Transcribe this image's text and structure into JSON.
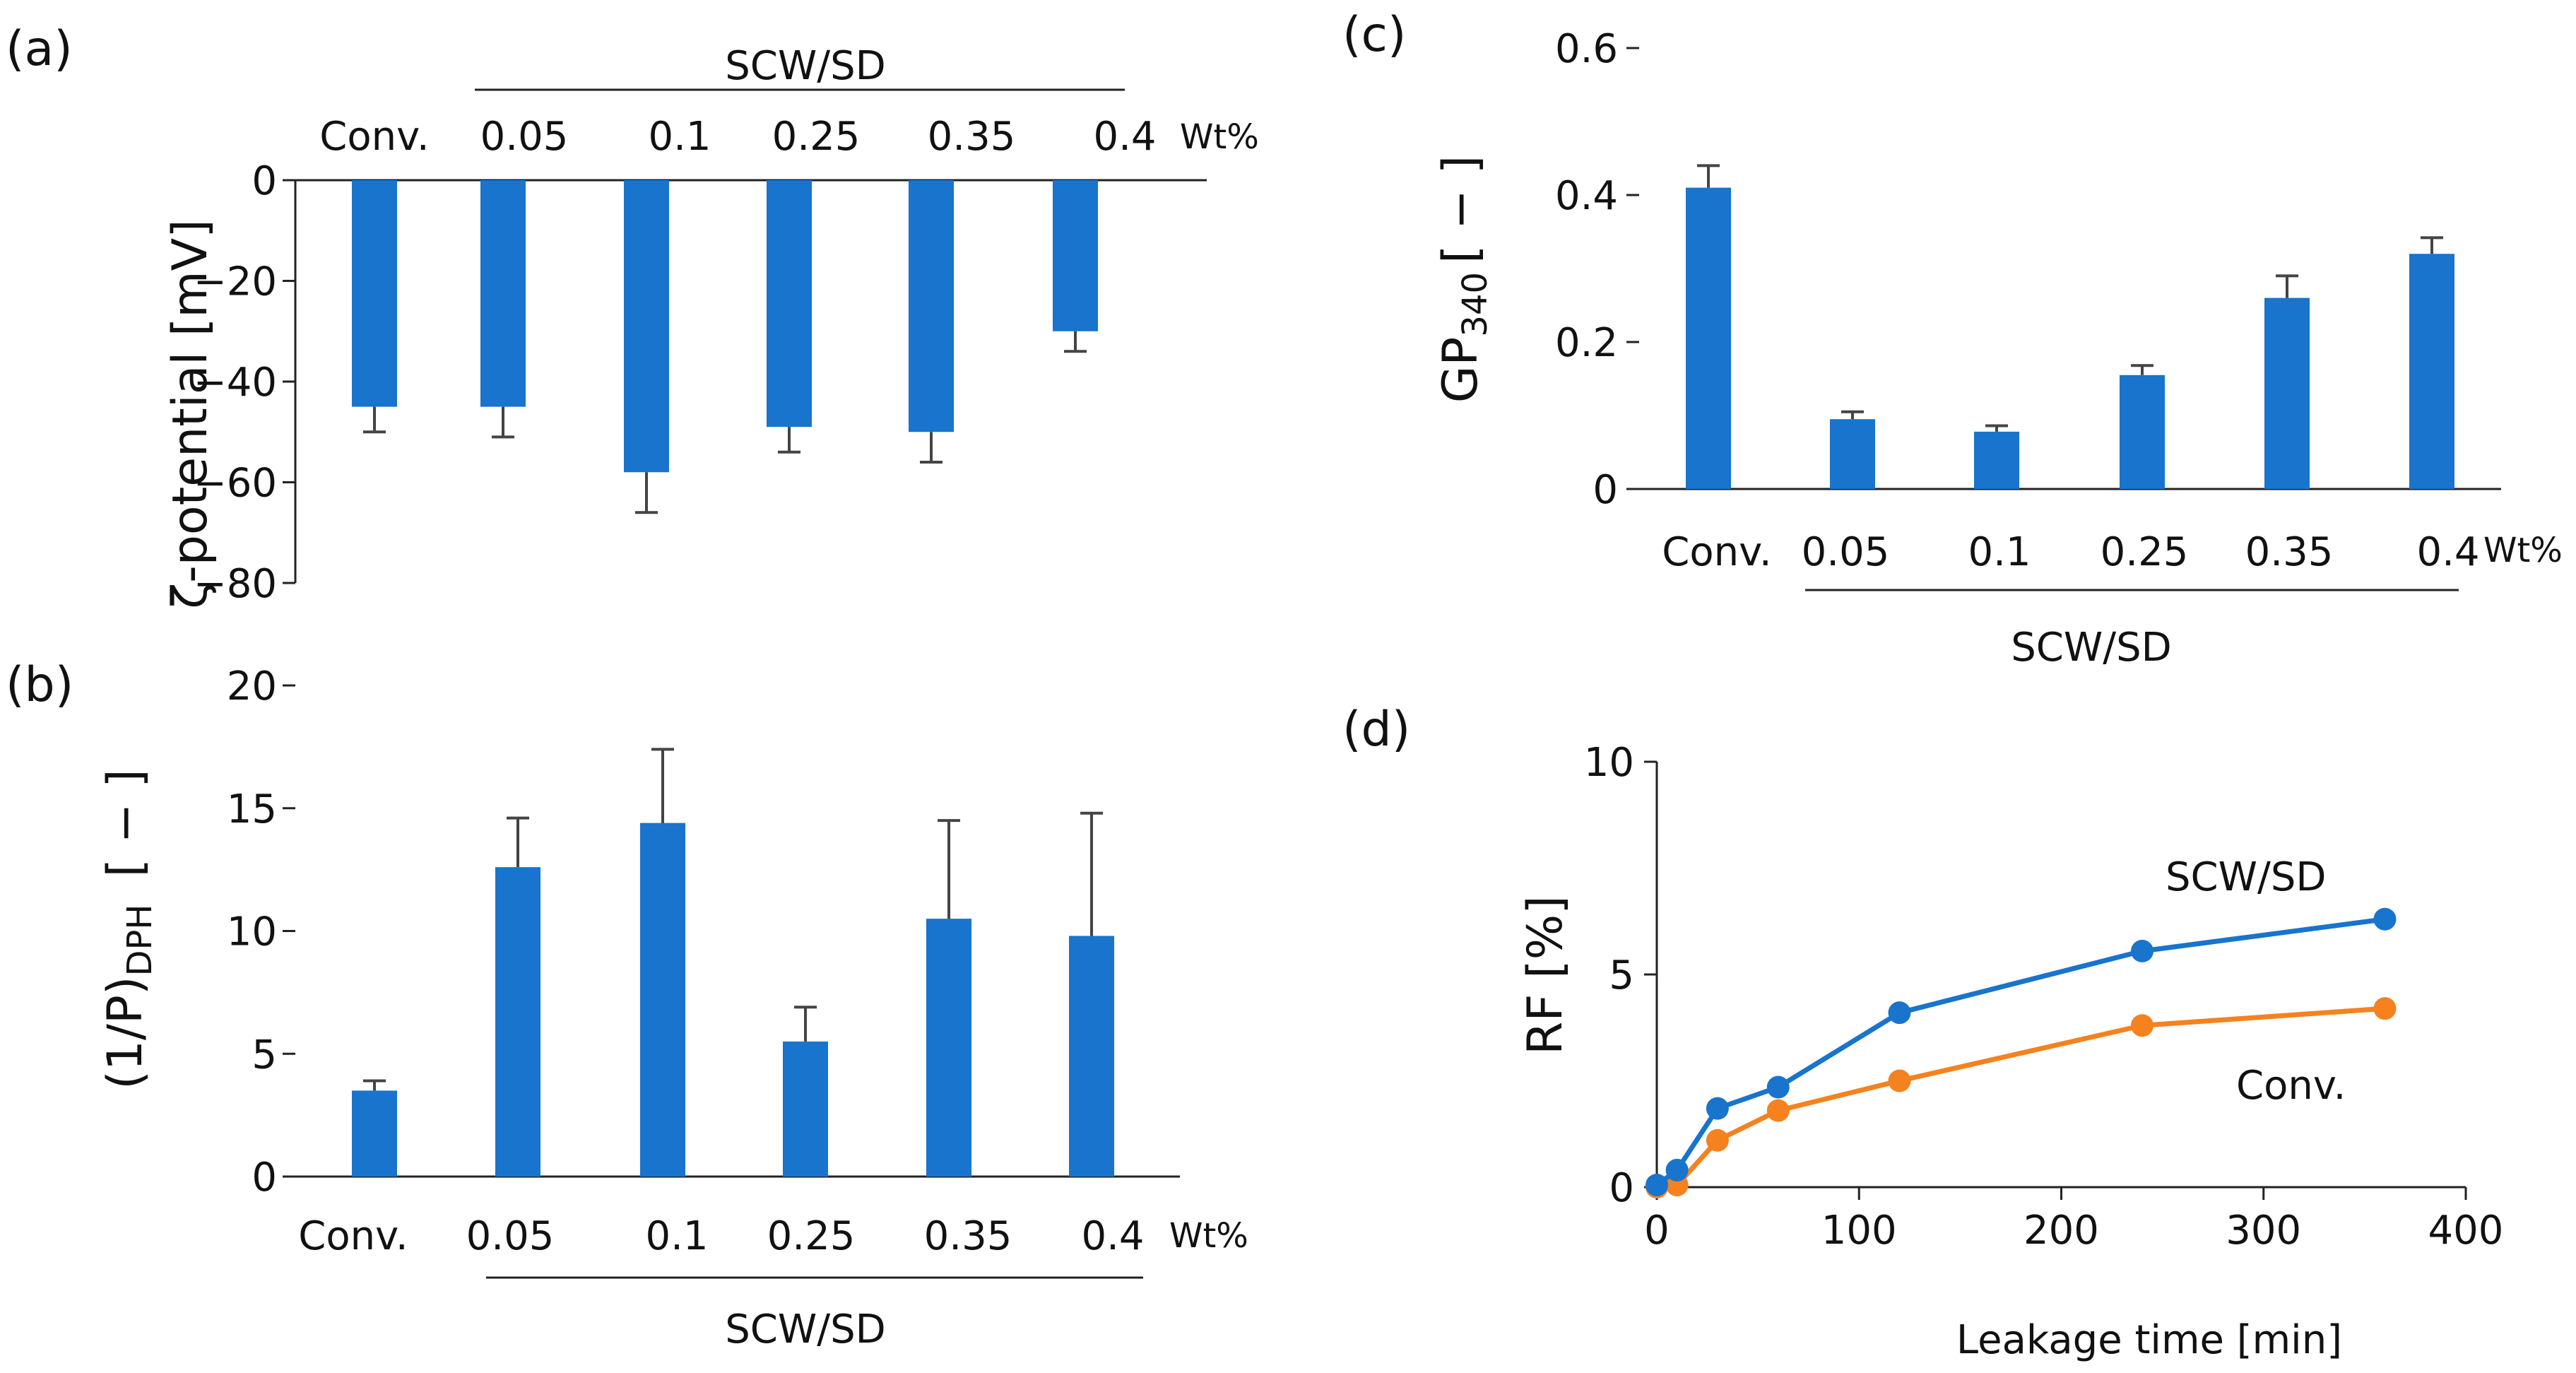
{
  "colors": {
    "bar": "#1874cd",
    "line_scw": "#1874cd",
    "line_conv": "#f5821f"
  },
  "group_label": "SCW/SD",
  "chart_data": [
    {
      "panel": "(a)",
      "type": "bar",
      "categories": [
        "Conv.",
        "0.05",
        "0.1",
        "0.25",
        "0.35",
        "0.4"
      ],
      "unit_label": "Wt%",
      "group_label": "SCW/SD",
      "ylabel": "ζ-potential [mV]",
      "ylim": [
        -80,
        0
      ],
      "yticks": [
        0,
        -20,
        -40,
        -60,
        -80
      ],
      "ytick_labels": [
        "0",
        "−20",
        "−40",
        "−60",
        "−80"
      ],
      "values": [
        -45,
        -45,
        -58,
        -49,
        -50,
        -30
      ],
      "errors": [
        5,
        6,
        8,
        5,
        6,
        4
      ]
    },
    {
      "panel": "(b)",
      "type": "bar",
      "categories": [
        "Conv.",
        "0.05",
        "0.1",
        "0.25",
        "0.35",
        "0.4"
      ],
      "unit_label": "Wt%",
      "group_label": "SCW/SD",
      "ylabel": "(1/P)",
      "ylabel_sub": "DPH",
      "ylabel_suffix": "[ − ]",
      "ylim": [
        0,
        20
      ],
      "yticks": [
        0,
        5,
        10,
        15,
        20
      ],
      "ytick_labels": [
        "0",
        "5",
        "10",
        "15",
        "20"
      ],
      "values": [
        3.5,
        12.6,
        14.4,
        5.5,
        10.5,
        9.8
      ],
      "errors": [
        0.4,
        2.0,
        3.0,
        1.4,
        4.0,
        5.0
      ]
    },
    {
      "panel": "(c)",
      "type": "bar",
      "categories": [
        "Conv.",
        "0.05",
        "0.1",
        "0.25",
        "0.35",
        "0.4"
      ],
      "unit_label": "Wt%",
      "group_label": "SCW/SD",
      "ylabel": "GP",
      "ylabel_sub": "340",
      "ylabel_suffix": "[ − ]",
      "ylim": [
        0,
        0.6
      ],
      "yticks": [
        0,
        0.2,
        0.4,
        0.6
      ],
      "ytick_labels": [
        "0",
        "0.2",
        "0.4",
        "0.6"
      ],
      "values": [
        0.41,
        0.095,
        0.078,
        0.155,
        0.26,
        0.32
      ],
      "errors": [
        0.03,
        0.01,
        0.008,
        0.013,
        0.03,
        0.022
      ]
    },
    {
      "panel": "(d)",
      "type": "line",
      "xlabel": "Leakage time [min]",
      "ylabel": "RF [%]",
      "xlim": [
        0,
        400
      ],
      "ylim": [
        0,
        10
      ],
      "xticks": [
        0,
        100,
        200,
        300,
        400
      ],
      "xtick_labels": [
        "0",
        "100",
        "200",
        "300",
        "400"
      ],
      "yticks": [
        0,
        5,
        10
      ],
      "ytick_labels": [
        "0",
        "5",
        "10"
      ],
      "series": [
        {
          "name": "SCW/SD",
          "x": [
            0,
            10,
            30,
            60,
            120,
            240,
            360
          ],
          "values": [
            0.05,
            0.4,
            1.85,
            2.35,
            4.1,
            5.55,
            6.3
          ]
        },
        {
          "name": "Conv.",
          "x": [
            0,
            10,
            30,
            60,
            120,
            240,
            360
          ],
          "values": [
            0.0,
            0.05,
            1.1,
            1.8,
            2.5,
            3.8,
            4.2
          ]
        }
      ]
    }
  ]
}
